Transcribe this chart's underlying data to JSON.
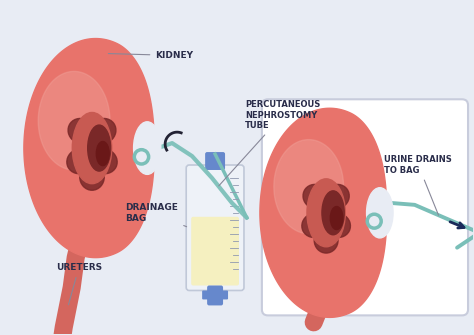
{
  "bg_color": "#e8ecf4",
  "kidney_color": "#e8736b",
  "kidney_dark": "#c85a52",
  "kidney_inner": "#b84840",
  "kidney_highlight": "#f0a098",
  "medulla_color": "#7a2828",
  "tube_color": "#7abfb8",
  "ureter_color": "#d4665e",
  "bag_body_color": "#eef2f8",
  "bag_body_color2": "#dde4f0",
  "bag_liquid_color": "#f5f0c0",
  "bag_connector_color": "#6688cc",
  "bag_outline_color": "#c0c8d8",
  "label_color": "#2a2d4a",
  "arrow_color": "#6670a0",
  "inset_bg": "#ffffff",
  "labels": {
    "kidney": "KIDNEY",
    "tube": "PERCUTANEOUS\nNEPHROSTOMY\nTUBE",
    "bag": "DRAINAGE\nBAG",
    "ureters": "URETERS",
    "urine": "URINE DRAINS\nTO BAG"
  }
}
